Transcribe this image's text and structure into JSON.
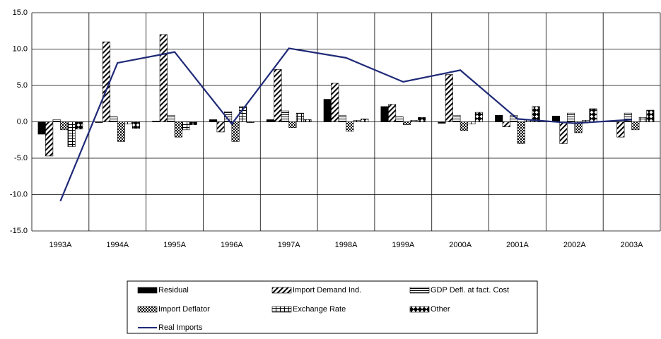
{
  "chart_data": {
    "type": "bar",
    "categories": [
      "1993A",
      "1994A",
      "1995A",
      "1996A",
      "1997A",
      "1998A",
      "1999A",
      "2000A",
      "2001A",
      "2002A",
      "2003A"
    ],
    "series": [
      {
        "name": "Residual",
        "color": "#000000",
        "pattern": "solid",
        "values": [
          -1.7,
          -0.1,
          0.1,
          0.3,
          0.3,
          3.1,
          2.1,
          -0.2,
          0.9,
          0.8,
          0.0
        ]
      },
      {
        "name": "Import Demand Ind.",
        "color": "#000000",
        "pattern": "diagonal",
        "values": [
          -4.7,
          11.0,
          12.0,
          -1.4,
          7.2,
          5.3,
          2.4,
          6.5,
          -0.7,
          -3.0,
          -2.1
        ]
      },
      {
        "name": "GDP Defl. at fact. Cost",
        "color": "#000000",
        "pattern": "horizontal",
        "values": [
          0.3,
          0.7,
          0.9,
          1.4,
          1.5,
          0.9,
          0.7,
          0.9,
          0.9,
          1.2,
          1.2
        ]
      },
      {
        "name": "Import Deflator",
        "color": "#000000",
        "pattern": "checker",
        "values": [
          -1.1,
          -2.7,
          -2.1,
          -2.7,
          -0.8,
          -1.3,
          -0.4,
          -1.2,
          -3.0,
          -1.5,
          -1.1
        ]
      },
      {
        "name": "Exchange Rate",
        "color": "#000000",
        "pattern": "brick",
        "values": [
          -3.4,
          -0.3,
          -1.1,
          2.1,
          1.2,
          0.2,
          0.2,
          -0.3,
          0.3,
          0.2,
          0.6
        ]
      },
      {
        "name": "Other",
        "color": "#000000",
        "pattern": "diamond",
        "values": [
          -1.0,
          -0.9,
          -0.4,
          -0.1,
          0.3,
          0.4,
          0.6,
          1.3,
          2.1,
          1.8,
          1.6
        ]
      },
      {
        "name": "Real Imports",
        "type": "line",
        "color": "#1f2a78",
        "values": [
          -10.9,
          8.1,
          9.6,
          -0.3,
          10.1,
          8.8,
          5.5,
          7.1,
          0.4,
          -0.2,
          0.3
        ]
      }
    ],
    "ylim": [
      -15,
      15
    ],
    "yticks": [
      {
        "value": -15,
        "label": "-15.0"
      },
      {
        "value": -10,
        "label": "-10.0"
      },
      {
        "value": -5,
        "label": "-5.0"
      },
      {
        "value": 0,
        "label": "0.0"
      },
      {
        "value": 5,
        "label": "5.0"
      },
      {
        "value": 10,
        "label": "10.0"
      },
      {
        "value": 15,
        "label": "15.0"
      }
    ],
    "grid": true
  }
}
